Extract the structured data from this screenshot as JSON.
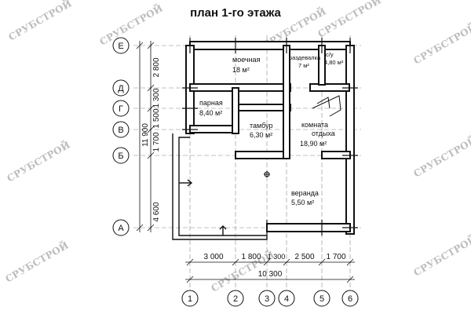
{
  "title": "план 1-го этажа",
  "watermark": "СРУБСТРОЙ",
  "axes_letters": [
    "Е",
    "Д",
    "Г",
    "В",
    "Б",
    "А"
  ],
  "axes_numbers": [
    "1",
    "2",
    "3",
    "4",
    "5",
    "6"
  ],
  "rooms": [
    {
      "name": "моечная",
      "area": "18 м²"
    },
    {
      "name": "раздевалка",
      "area": "7 м²"
    },
    {
      "name": "с/у",
      "area": "4,80 м²"
    },
    {
      "name": "парная",
      "area": "8,40 м²"
    },
    {
      "name": "тамбур",
      "area": "6,30 м²"
    },
    {
      "name": "комната",
      "name2": "отдыха",
      "area": "18,90 м²"
    },
    {
      "name": "веранда",
      "area": "5,50 м²"
    }
  ],
  "dims_horizontal": [
    "3 000",
    "1 800",
    "1 300",
    "2 500",
    "1 700"
  ],
  "dims_horizontal_total": "10 300",
  "dims_vertical": [
    "2 800",
    "1 300",
    "1 500",
    "1 700",
    "4 600"
  ],
  "dims_vertical_total": "11 900"
}
